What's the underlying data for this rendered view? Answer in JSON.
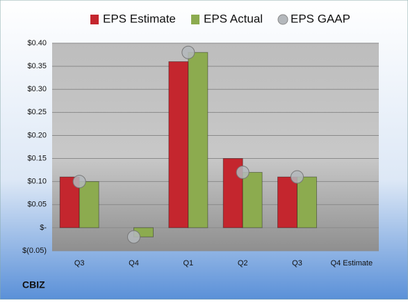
{
  "chart_data": {
    "type": "bar",
    "caption": "CBIZ",
    "categories": [
      "Q3",
      "Q4",
      "Q1",
      "Q2",
      "Q3",
      "Q4 Estimate"
    ],
    "series": [
      {
        "name": "EPS Estimate",
        "color": "#c4262e",
        "values": [
          0.11,
          null,
          0.36,
          0.15,
          0.11,
          null
        ]
      },
      {
        "name": "EPS Actual",
        "color": "#8cab4f",
        "values": [
          0.1,
          -0.02,
          0.38,
          0.12,
          0.11,
          null
        ]
      },
      {
        "name": "EPS GAAP",
        "color": "#b4b8bc",
        "marker": "circle",
        "values": [
          0.1,
          -0.02,
          0.38,
          0.12,
          0.11,
          null
        ]
      }
    ],
    "ylim": [
      -0.05,
      0.4
    ],
    "yticks": [
      {
        "value": -0.05,
        "label": "$(0.05)"
      },
      {
        "value": 0,
        "label": "$-"
      },
      {
        "value": 0.05,
        "label": "$0.05"
      },
      {
        "value": 0.1,
        "label": "$0.10"
      },
      {
        "value": 0.15,
        "label": "$0.15"
      },
      {
        "value": 0.2,
        "label": "$0.20"
      },
      {
        "value": 0.25,
        "label": "$0.25"
      },
      {
        "value": 0.3,
        "label": "$0.30"
      },
      {
        "value": 0.35,
        "label": "$0.35"
      },
      {
        "value": 0.4,
        "label": "$0.40"
      }
    ],
    "grid": true,
    "legend": "top"
  }
}
